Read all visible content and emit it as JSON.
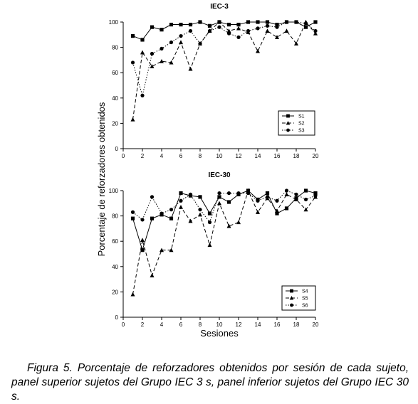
{
  "figure": {
    "shared_ylabel": "Porcentaje de reforzadores obtenidos",
    "shared_xlabel": "Sesiones"
  },
  "chart_data": [
    {
      "type": "line",
      "title": "IEC-3",
      "xlabel": "",
      "ylabel": "Porcentaje de reforzadores obtenidos",
      "xlim": [
        0,
        20
      ],
      "ylim": [
        0,
        100
      ],
      "xticks": [
        0,
        2,
        4,
        6,
        8,
        10,
        12,
        14,
        16,
        18,
        20
      ],
      "yticks": [
        0,
        20,
        40,
        60,
        80,
        100
      ],
      "grid": false,
      "legend_position": "lower-right",
      "x": [
        1,
        2,
        3,
        4,
        5,
        6,
        7,
        8,
        9,
        10,
        11,
        12,
        13,
        14,
        15,
        16,
        17,
        18,
        19,
        20
      ],
      "series": [
        {
          "name": "S1",
          "marker": "square",
          "line": "solid",
          "values": [
            89,
            86,
            96,
            94,
            98,
            98,
            98,
            100,
            97,
            100,
            98,
            98,
            100,
            100,
            100,
            98,
            100,
            100,
            96,
            100
          ]
        },
        {
          "name": "S2",
          "marker": "triangle",
          "line": "dashed",
          "values": [
            23,
            76,
            65,
            69,
            68,
            84,
            63,
            83,
            93,
            100,
            93,
            95,
            92,
            77,
            93,
            88,
            93,
            83,
            100,
            91
          ]
        },
        {
          "name": "S3",
          "marker": "circle",
          "line": "dotted",
          "values": [
            68,
            42,
            75,
            79,
            84,
            89,
            93,
            83,
            93,
            96,
            91,
            88,
            93,
            95,
            97,
            96,
            100,
            100,
            99,
            93
          ]
        }
      ]
    },
    {
      "type": "line",
      "title": "IEC-30",
      "xlabel": "Sesiones",
      "ylabel": "Porcentaje de reforzadores obtenidos",
      "xlim": [
        0,
        20
      ],
      "ylim": [
        0,
        100
      ],
      "xticks": [
        0,
        2,
        4,
        6,
        8,
        10,
        12,
        14,
        16,
        18,
        20
      ],
      "yticks": [
        0,
        20,
        40,
        60,
        80,
        100
      ],
      "grid": false,
      "legend_position": "lower-right",
      "x": [
        1,
        2,
        3,
        4,
        5,
        6,
        7,
        8,
        9,
        10,
        11,
        12,
        13,
        14,
        15,
        16,
        17,
        18,
        19,
        20
      ],
      "series": [
        {
          "name": "S4",
          "marker": "square",
          "line": "solid",
          "values": [
            78,
            53,
            78,
            81,
            78,
            98,
            96,
            95,
            82,
            95,
            91,
            97,
            100,
            93,
            98,
            82,
            86,
            94,
            100,
            98
          ]
        },
        {
          "name": "S5",
          "marker": "triangle",
          "line": "dashed",
          "values": [
            18,
            61,
            33,
            53,
            53,
            87,
            76,
            81,
            57,
            90,
            72,
            75,
            100,
            83,
            94,
            84,
            97,
            93,
            85,
            95
          ]
        },
        {
          "name": "S6",
          "marker": "circle",
          "line": "dotted",
          "values": [
            83,
            77,
            95,
            82,
            85,
            92,
            97,
            85,
            75,
            98,
            98,
            98,
            98,
            92,
            95,
            92,
            100,
            97,
            93,
            96
          ]
        }
      ]
    }
  ],
  "caption": "Figura 5. Porcentaje de reforzadores obtenidos por sesión de cada sujeto, panel superior sujetos del Grupo IEC 3 s, panel inferior sujetos del Grupo IEC 30 s."
}
